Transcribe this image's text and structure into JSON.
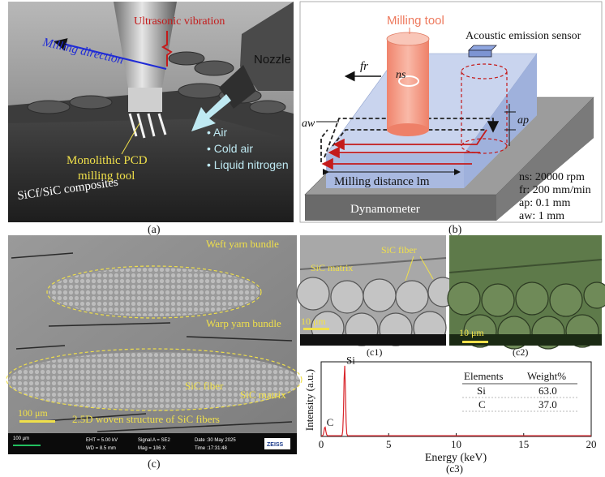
{
  "panel_a": {
    "milling_direction": "Milling direction",
    "ultrasonic_vibration": "Ultrasonic vibration",
    "nozzle": "Nozzle",
    "coolant_air": "• Air",
    "coolant_cold_air": "• Cold air",
    "coolant_liquid_nitrogen": "• Liquid nitrogen",
    "tool_line1": "Monolithic PCD",
    "tool_line2": "milling tool",
    "composite_label": "SiCf/SiC composites",
    "label": "(a)"
  },
  "panel_b": {
    "milling_tool": "Milling tool",
    "acoustic_sensor": "Acoustic emission sensor",
    "fr": "fr",
    "ns": "ns",
    "aw": "aw",
    "ap": "ap",
    "milling_distance": "Milling distance lm",
    "dynamometer": "Dynamometer",
    "param_ns": "ns: 20000 rpm",
    "param_fr": "fr:  200 mm/min",
    "param_ap": "ap: 0.1 mm",
    "param_aw": "aw: 1 mm",
    "label": "(b)"
  },
  "panel_c": {
    "weft": "Weft yarn bundle",
    "warp": "Warp yarn bundle",
    "sic_fiber": "SiC fiber",
    "sic_matrix": "SiC matrix",
    "woven": "2.5D woven structure of SiC fibers",
    "scale": "100 μm",
    "info_scale": "100 μm",
    "info_eht": "EHT =  5.00 kV",
    "info_wd": "WD =  8.5 mm",
    "info_signal": "Signal A = SE2",
    "info_mag": "Mag =  106 X",
    "info_date": "Date :30 May 2025",
    "info_time": "Time :17:31:48",
    "brand": "ZEISS",
    "label": "(c)"
  },
  "panel_c1": {
    "sic_fiber": "SiC fiber",
    "sic_matrix": "SiC matrix",
    "scale": "10 μm",
    "label": "(c1)"
  },
  "panel_c2": {
    "scale": "10 μm",
    "label": "(c2)"
  },
  "panel_c3": {
    "label": "(c3)",
    "table_header_elements": "Elements",
    "table_header_weight": "Weight%",
    "table_rows": [
      {
        "element": "Si",
        "weight": "63.0"
      },
      {
        "element": "C",
        "weight": "37.0"
      }
    ]
  },
  "chart_data": {
    "type": "line",
    "xlabel": "Energy (keV)",
    "ylabel": "Intensity (a.u.)",
    "xlim": [
      0,
      20
    ],
    "x_ticks": [
      0,
      5,
      10,
      15,
      20
    ],
    "grid": false,
    "peaks": [
      {
        "name": "C",
        "energy": 0.28,
        "relative_intensity": 0.12
      },
      {
        "name": "Si",
        "energy": 1.74,
        "relative_intensity": 0.95
      }
    ],
    "line_color": "#d9262c"
  },
  "colors": {
    "tool_orange": "#f4a08a",
    "accent_yellow": "#f0e04a",
    "arrow_red": "#c41b1b",
    "arrow_blue": "#1f2bd6",
    "coolant_cyan": "#bfe9f2"
  }
}
